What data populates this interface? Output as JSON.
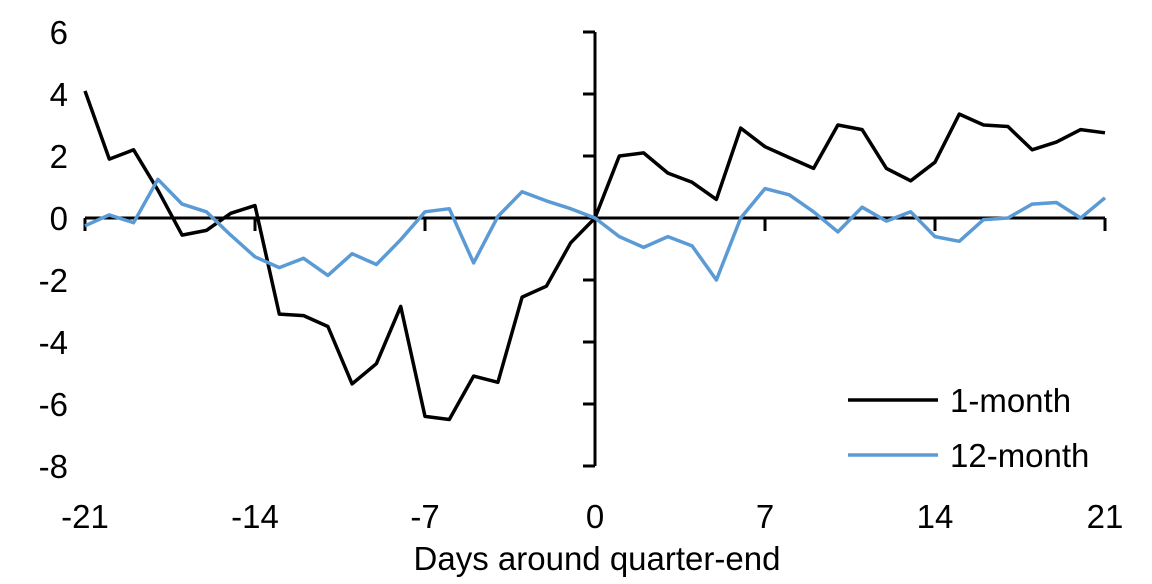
{
  "chart_data": {
    "type": "line",
    "title": "",
    "xlabel": "Days around quarter-end",
    "ylabel": "",
    "x_axis": {
      "min": -21,
      "max": 21,
      "ticks": [
        -21,
        -14,
        -7,
        0,
        7,
        14,
        21
      ]
    },
    "y_axis": {
      "min": -8,
      "max": 6,
      "ticks": [
        6,
        4,
        2,
        0,
        -2,
        -4,
        -6,
        -8
      ]
    },
    "grid": false,
    "legend_position": "inside-lower-right",
    "x": [
      -21,
      -20,
      -19,
      -18,
      -17,
      -16,
      -15,
      -14,
      -13,
      -12,
      -11,
      -10,
      -9,
      -8,
      -7,
      -6,
      -5,
      -4,
      -3,
      -2,
      -1,
      0,
      1,
      2,
      3,
      4,
      5,
      6,
      7,
      8,
      9,
      10,
      11,
      12,
      13,
      14,
      15,
      16,
      17,
      18,
      19,
      20,
      21
    ],
    "series": [
      {
        "name": "1-month",
        "color": "#000000",
        "values": [
          4.1,
          1.9,
          2.2,
          0.9,
          -0.55,
          -0.4,
          0.15,
          0.4,
          -3.1,
          -3.15,
          -3.5,
          -5.35,
          -4.7,
          -2.85,
          -6.4,
          -6.5,
          -5.1,
          -5.3,
          -2.55,
          -2.2,
          -0.8,
          0,
          2.0,
          2.1,
          1.45,
          1.15,
          0.6,
          2.9,
          2.3,
          1.95,
          1.6,
          3.0,
          2.85,
          1.6,
          1.2,
          1.8,
          3.35,
          3.0,
          2.95,
          2.2,
          2.45,
          2.85,
          2.75
        ]
      },
      {
        "name": "12-month",
        "color": "#5B9BD5",
        "values": [
          -0.25,
          0.1,
          -0.15,
          1.25,
          0.45,
          0.2,
          -0.55,
          -1.25,
          -1.6,
          -1.3,
          -1.85,
          -1.15,
          -1.5,
          -0.7,
          0.2,
          0.3,
          -1.45,
          0.05,
          0.85,
          0.55,
          0.3,
          0,
          -0.6,
          -0.95,
          -0.6,
          -0.9,
          -2.0,
          0.0,
          0.95,
          0.75,
          0.2,
          -0.45,
          0.35,
          -0.1,
          0.2,
          -0.6,
          -0.75,
          -0.05,
          0.0,
          0.45,
          0.5,
          0.0,
          0.65
        ]
      }
    ],
    "legend": [
      {
        "label": "1-month",
        "color": "#000000"
      },
      {
        "label": "12-month",
        "color": "#5B9BD5"
      }
    ],
    "axis_color": "#000000"
  }
}
